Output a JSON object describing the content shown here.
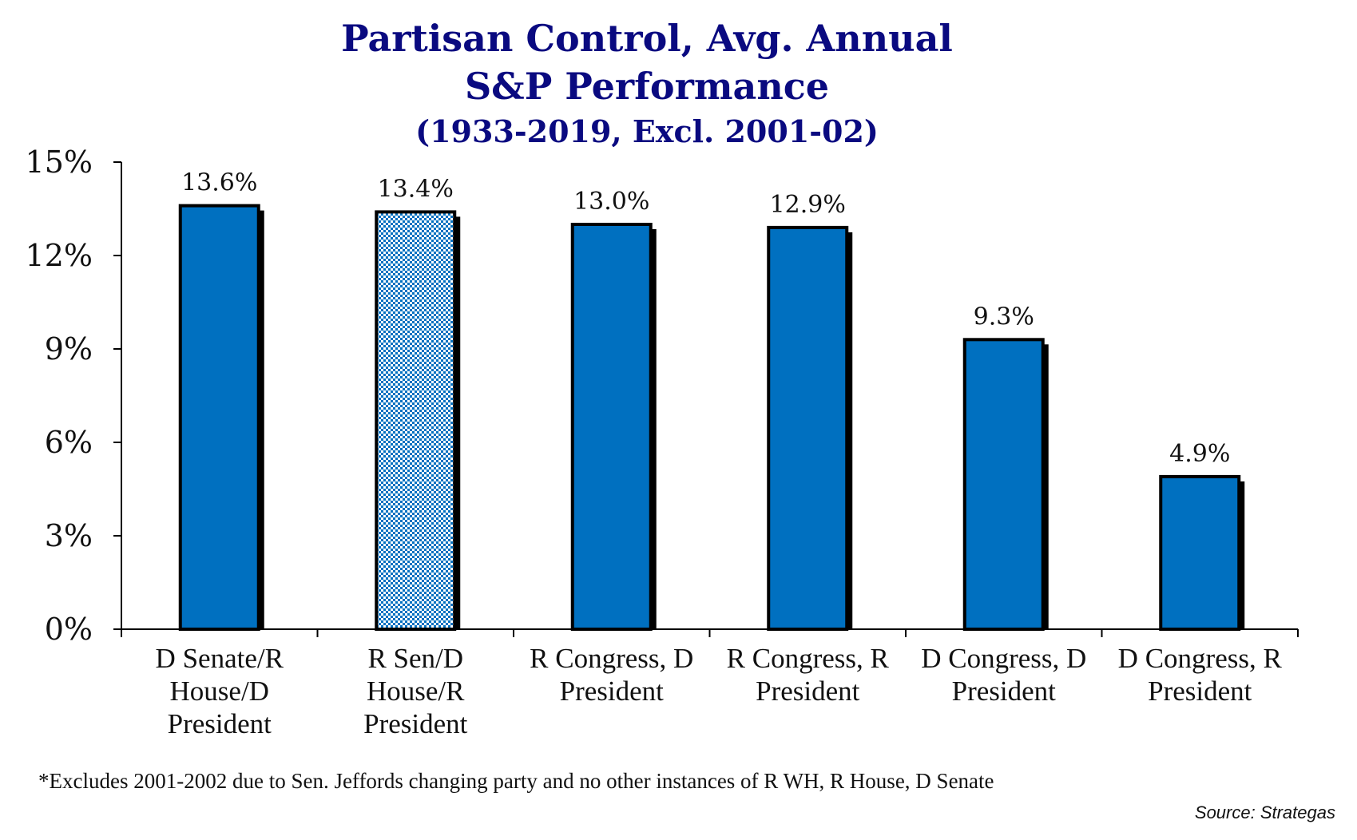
{
  "chart_data": {
    "type": "bar",
    "title": [
      "Partisan Control, Avg. Annual",
      "S&P Performance",
      "(1933-2019, Excl. 2001-02)"
    ],
    "categories": [
      [
        "D Senate/R",
        "House/D",
        "President"
      ],
      [
        "R Sen/D",
        "House/R",
        "President"
      ],
      [
        "R Congress, D",
        "President"
      ],
      [
        "R Congress, R",
        "President"
      ],
      [
        "D Congress, D",
        "President"
      ],
      [
        "D Congress, R",
        "President"
      ]
    ],
    "values": [
      13.6,
      13.4,
      13.0,
      12.9,
      9.3,
      4.9
    ],
    "value_labels": [
      "13.6%",
      "13.4%",
      "13.0%",
      "12.9%",
      "9.3%",
      "4.9%"
    ],
    "bar_fill": [
      "solid",
      "pattern",
      "solid",
      "solid",
      "solid",
      "solid"
    ],
    "ylim": [
      0,
      15
    ],
    "yticks": [
      0,
      3,
      6,
      9,
      12,
      15
    ],
    "ytick_labels": [
      "0%",
      "3%",
      "6%",
      "9%",
      "12%",
      "15%"
    ],
    "xlabel": "",
    "ylabel": "",
    "grid": false,
    "legend": "none",
    "colors": {
      "bar": "#0070c0",
      "title": "#0a0a80",
      "outline": "#000000"
    }
  },
  "footnote": "*Excludes 2001-2002 due to Sen. Jeffords changing party and no other instances of R WH, R House, D Senate",
  "source": "Source: Strategas"
}
